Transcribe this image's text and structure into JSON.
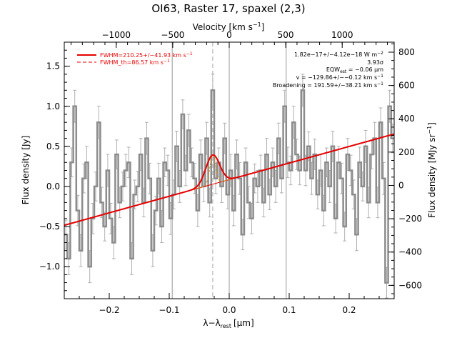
{
  "chart_data": {
    "type": "line",
    "title": "OI63, Raster 17, spaxel (2,3)",
    "xlabel": "λ−λ",
    "xlabel_sub": "rest",
    "xlabel_unit": "[μm]",
    "ylabel": "Flux density [Jy]",
    "ylabel_right": "Flux density [MJy sr",
    "ylabel_right_sup": "−1",
    "ylabel_right_end": "]",
    "top_axis_label": "Velocity [km s",
    "top_axis_sup": "−1",
    "top_axis_end": "]",
    "xlim": [
      -0.275,
      0.275
    ],
    "ylim": [
      -1.4,
      1.8
    ],
    "right_ylim": [
      -680,
      860
    ],
    "top_xlim": [
      -1460,
      1460
    ],
    "x_ticks": [
      -0.2,
      -0.1,
      0.0,
      0.1,
      0.2
    ],
    "x_tick_labels": [
      "−0.2",
      "−0.1",
      "0.0",
      "0.1",
      "0.2"
    ],
    "y_ticks": [
      -1.0,
      -0.5,
      0.0,
      0.5,
      1.0,
      1.5
    ],
    "y_tick_labels": [
      "−1.0",
      "−0.5",
      "0.0",
      "0.5",
      "1.0",
      "1.5"
    ],
    "right_ticks": [
      -600,
      -400,
      -200,
      0,
      200,
      400,
      600,
      800
    ],
    "right_tick_labels": [
      "−600",
      "−400",
      "−200",
      "0",
      "200",
      "400",
      "600",
      "800"
    ],
    "top_ticks": [
      -1000,
      -500,
      0,
      500,
      1000
    ],
    "top_tick_labels": [
      "−1000",
      "−500",
      "0",
      "500",
      "1000"
    ],
    "vlines": [
      -0.095,
      0.0,
      0.095
    ],
    "line_center": -0.0275,
    "spectrum": {
      "x": [
        -0.2725,
        -0.2675,
        -0.2625,
        -0.2575,
        -0.2525,
        -0.2475,
        -0.2425,
        -0.2375,
        -0.2325,
        -0.2275,
        -0.2225,
        -0.2175,
        -0.2125,
        -0.2075,
        -0.2025,
        -0.1975,
        -0.1925,
        -0.1875,
        -0.1825,
        -0.1775,
        -0.1725,
        -0.1675,
        -0.1625,
        -0.1575,
        -0.1525,
        -0.1475,
        -0.1425,
        -0.1375,
        -0.1325,
        -0.1275,
        -0.1225,
        -0.1175,
        -0.1125,
        -0.1075,
        -0.1025,
        -0.0975,
        -0.0925,
        -0.0875,
        -0.0825,
        -0.0775,
        -0.0725,
        -0.0675,
        -0.0625,
        -0.0575,
        -0.0525,
        -0.0475,
        -0.0425,
        -0.0375,
        -0.0325,
        -0.0275,
        -0.0225,
        -0.0175,
        -0.0125,
        -0.0075,
        -0.0025,
        0.0025,
        0.0075,
        0.0125,
        0.0175,
        0.0225,
        0.0275,
        0.0325,
        0.0375,
        0.0425,
        0.0475,
        0.0525,
        0.0575,
        0.0625,
        0.0675,
        0.0725,
        0.0775,
        0.0825,
        0.0875,
        0.0925,
        0.0975,
        0.1025,
        0.1075,
        0.1125,
        0.1175,
        0.1225,
        0.1275,
        0.1325,
        0.1375,
        0.1425,
        0.1475,
        0.1525,
        0.1575,
        0.1625,
        0.1675,
        0.1725,
        0.1775,
        0.1825,
        0.1875,
        0.1925,
        0.1975,
        0.2025,
        0.2075,
        0.2125,
        0.2175,
        0.2225,
        0.2275,
        0.2325,
        0.2375,
        0.2425,
        0.2475,
        0.2525,
        0.2575,
        0.2625,
        0.2675,
        0.2725
      ],
      "y": [
        -0.6,
        -0.9,
        0.3,
        1.0,
        -0.3,
        -0.8,
        0.1,
        0.3,
        -1.0,
        -0.4,
        0.0,
        0.8,
        -0.2,
        -0.5,
        0.2,
        -0.4,
        -0.7,
        0.4,
        -0.2,
        0.0,
        0.2,
        0.3,
        -0.9,
        -0.1,
        0.0,
        0.4,
        -0.2,
        0.6,
        0.1,
        -0.8,
        -0.3,
        0.1,
        -0.5,
        0.3,
        0.2,
        -0.4,
        -0.1,
        0.5,
        0.0,
        0.9,
        0.2,
        0.7,
        0.3,
        0.1,
        -0.3,
        0.4,
        0.0,
        0.6,
        -0.2,
        1.2,
        0.1,
        0.3,
        0.0,
        0.6,
        -0.1,
        0.2,
        -0.3,
        0.4,
        0.1,
        -0.6,
        0.3,
        -0.2,
        -0.4,
        0.1,
        0.0,
        0.2,
        -0.2,
        0.4,
        -0.1,
        0.3,
        0.0,
        0.6,
        0.1,
        1.0,
        0.3,
        0.2,
        0.8,
        0.4,
        0.2,
        1.2,
        0.2,
        0.5,
        0.1,
        0.4,
        -0.1,
        0.2,
        -0.3,
        0.3,
        0.0,
        0.5,
        -0.4,
        0.3,
        0.1,
        -0.5,
        0.4,
        0.2,
        -0.1,
        -0.6,
        0.3,
        0.0,
        0.5,
        -0.2,
        0.4,
        0.6,
        -0.2,
        0.8,
        0.1,
        -1.2,
        1.0,
        0.6
      ],
      "err": [
        0.18,
        0.2,
        0.18,
        0.2,
        0.19,
        0.2,
        0.18,
        0.2,
        0.2,
        0.19,
        0.18,
        0.2,
        0.19,
        0.18,
        0.2,
        0.19,
        0.2,
        0.18,
        0.19,
        0.18,
        0.2,
        0.19,
        0.2,
        0.18,
        0.19,
        0.2,
        0.18,
        0.2,
        0.19,
        0.2,
        0.18,
        0.19,
        0.2,
        0.18,
        0.19,
        0.2,
        0.18,
        0.19,
        0.2,
        0.18,
        0.19,
        0.2,
        0.18,
        0.19,
        0.2,
        0.18,
        0.19,
        0.2,
        0.18,
        0.2,
        0.19,
        0.18,
        0.2,
        0.19,
        0.18,
        0.2,
        0.19,
        0.18,
        0.2,
        0.19,
        0.18,
        0.2,
        0.19,
        0.18,
        0.2,
        0.19,
        0.18,
        0.2,
        0.19,
        0.18,
        0.2,
        0.19,
        0.18,
        0.2,
        0.19,
        0.18,
        0.2,
        0.19,
        0.18,
        0.2,
        0.19,
        0.18,
        0.2,
        0.19,
        0.18,
        0.2,
        0.19,
        0.18,
        0.2,
        0.19,
        0.18,
        0.2,
        0.19,
        0.18,
        0.2,
        0.19,
        0.18,
        0.2,
        0.19,
        0.18,
        0.2,
        0.19,
        0.18,
        0.2,
        0.19,
        0.18,
        0.2,
        0.19,
        0.2,
        0.18
      ]
    },
    "continuum": {
      "slope": 2.07,
      "intercept": 0.085
    },
    "gaussian_fit": {
      "center": -0.0275,
      "amplitude": 0.365,
      "sigma": 0.0115
    },
    "gaussian_th": {
      "center": -0.0275,
      "amplitude": 0.365,
      "sigma": 0.0048
    },
    "colors": {
      "data": "#8c8c8c",
      "fit": "#e60000",
      "th": "#e08a00",
      "vline": "#9a9a9a",
      "center_line": "#a8a8a8"
    },
    "legend": {
      "fwhm": "FWHM=210.25+/−41.93 km s",
      "fwhm_sup": "−1",
      "fwhm_th": "FWHM_th=86.57 km s",
      "fwhm_th_sup": "−1"
    },
    "annotations": {
      "flux": "1.82e−17+/−4.12e−18 W m",
      "flux_sup": "−2",
      "sigma": "3.93σ",
      "eqw": "EQW",
      "eqw_sub": "est",
      "eqw_val": " = −0.06 μm",
      "vel": "v = −129.86+/−−0.12 km s",
      "vel_sup": "−1",
      "broad": "Broadening = 191.59+/−38.21 km s",
      "broad_sup": "−1"
    }
  }
}
